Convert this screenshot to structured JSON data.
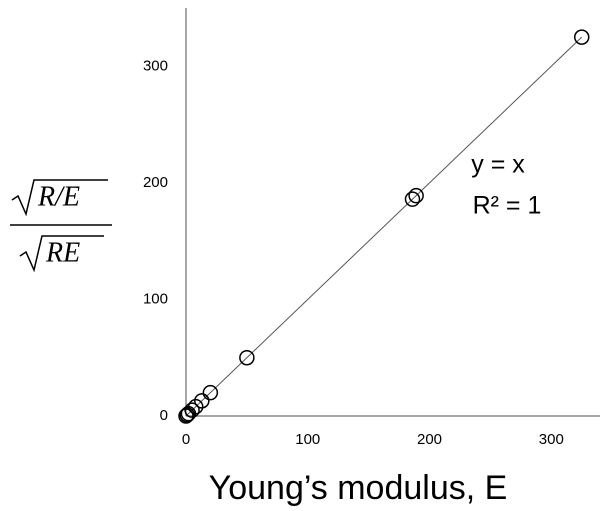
{
  "chart_data": {
    "type": "scatter",
    "x_label": "Young’s modulus, E",
    "y_label_numerator": "R/E",
    "y_label_denominator": "RE",
    "annotations": [
      "y = x",
      "R² = 1"
    ],
    "x": [
      0,
      1,
      2,
      5,
      8,
      13,
      20,
      50,
      186,
      189,
      325
    ],
    "values": [
      0,
      1,
      2,
      5,
      8,
      13,
      20,
      50,
      186,
      189,
      325
    ],
    "color": "#000000",
    "trendline": true,
    "xlim": [
      0,
      340
    ],
    "xticks": [
      0,
      100,
      200,
      300
    ],
    "ylim": [
      0,
      350
    ],
    "yticks": [
      0,
      100,
      200,
      300
    ],
    "grid": false
  }
}
